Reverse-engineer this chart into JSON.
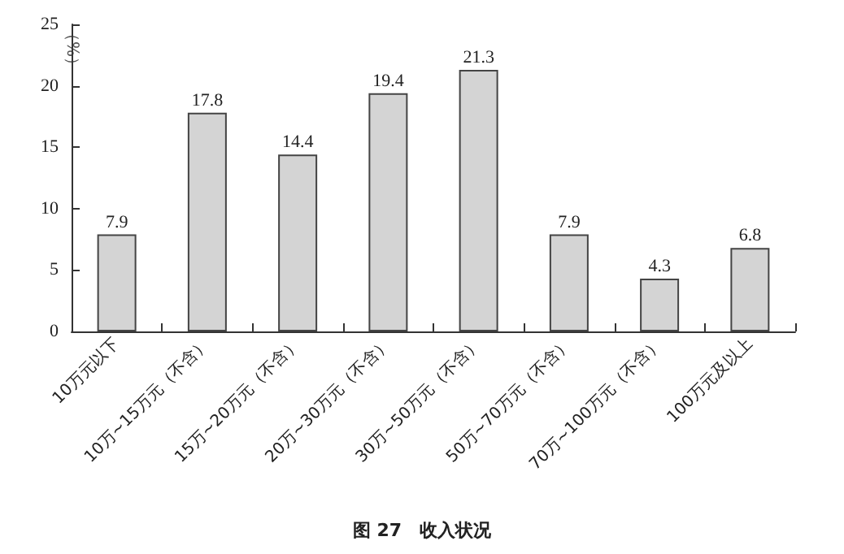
{
  "chart_data": {
    "type": "bar",
    "title": "图 27　收入状况",
    "ylabel": "（%）",
    "categories": [
      "10万元以下",
      "10万~15万元（不含）",
      "15万~20万元（不含）",
      "20万~30万元（不含）",
      "30万~50万元（不含）",
      "50万~70万元（不含）",
      "70万~100万元（不含）",
      "100万元及以上"
    ],
    "values": [
      7.9,
      17.8,
      14.4,
      19.4,
      21.3,
      7.9,
      4.3,
      6.8
    ],
    "color": "#d4d4d4",
    "ylim": [
      0,
      25
    ],
    "yticks": [
      0,
      5,
      10,
      15,
      20,
      25
    ],
    "data_labels": true
  }
}
